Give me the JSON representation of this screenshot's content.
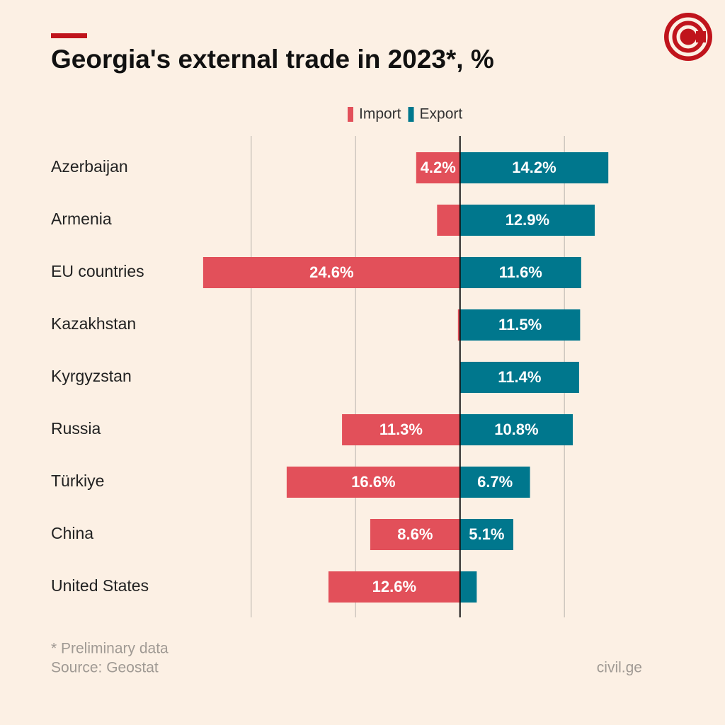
{
  "chart_data": {
    "type": "diverging_bar",
    "title": "Georgia's external trade in 2023*, %",
    "categories": [
      "Azerbaijan",
      "Armenia",
      "EU countries",
      "Kazakhstan",
      "Kyrgyzstan",
      "Russia",
      "Türkiye",
      "China",
      "United States"
    ],
    "series": [
      {
        "name": "Import",
        "color": "#e2505a",
        "side": "left",
        "values": [
          4.2,
          2.2,
          24.6,
          0.2,
          0,
          11.3,
          16.6,
          8.6,
          12.6
        ],
        "value_labels": [
          "4.2%",
          null,
          "24.6%",
          null,
          null,
          "11.3%",
          "16.6%",
          "8.6%",
          "12.6%"
        ]
      },
      {
        "name": "Export",
        "color": "#00778d",
        "side": "right",
        "values": [
          14.2,
          12.9,
          11.6,
          11.5,
          11.4,
          10.8,
          6.7,
          5.1,
          1.6
        ],
        "value_labels": [
          "14.2%",
          "12.9%",
          "11.6%",
          "11.5%",
          "11.4%",
          "10.8%",
          "6.7%",
          "5.1%",
          null
        ]
      }
    ],
    "xlim": [
      -25,
      15
    ],
    "xticks": [
      -20,
      -10,
      0,
      10
    ],
    "grid": true,
    "notes": [
      "* Preliminary data",
      "Source: Geostat"
    ],
    "credit": "civil.ge"
  }
}
